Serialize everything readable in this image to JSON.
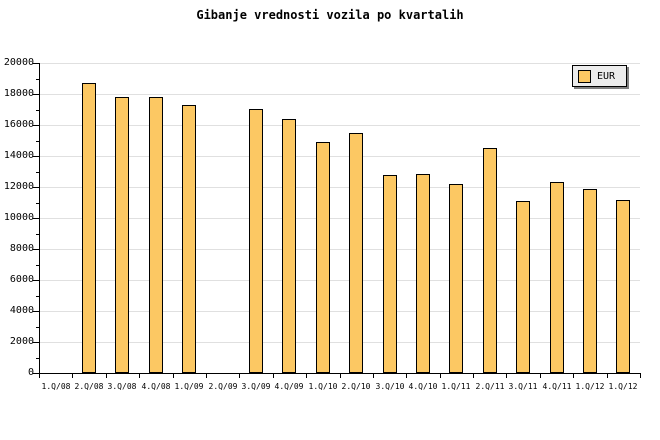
{
  "chart_data": {
    "type": "bar",
    "title": "Gibanje vrednosti vozila po kvartalih",
    "categories": [
      "1.Q/08",
      "2.Q/08",
      "3.Q/08",
      "4.Q/08",
      "1.Q/09",
      "2.Q/09",
      "3.Q/09",
      "4.Q/09",
      "1.Q/10",
      "2.Q/10",
      "3.Q/10",
      "4.Q/10",
      "1.Q/11",
      "2.Q/11",
      "3.Q/11",
      "4.Q/11",
      "1.Q/12",
      "1.Q/12"
    ],
    "series": [
      {
        "name": "EUR",
        "values": [
          null,
          18700,
          17800,
          17800,
          17300,
          null,
          17050,
          16400,
          14900,
          15500,
          12800,
          12850,
          12200,
          14500,
          11100,
          12300,
          11850,
          11150
        ]
      }
    ],
    "xlabel": "",
    "ylabel": "",
    "ylim": [
      0,
      20000
    ],
    "ytick_step": 2000,
    "minor_tick_step": 1000,
    "ytick_labels": [
      "0",
      "2000",
      "4000",
      "6000",
      "8000",
      "10000",
      "12000",
      "14000",
      "16000",
      "18000",
      "20000"
    ],
    "grid": true,
    "legend_position": "top-right",
    "colors": {
      "bar_fill": "#FCC863",
      "bar_border": "#000000",
      "gridline": "#E0E0E0",
      "legend_bg": "#ECECEC",
      "legend_shadow": "#808080",
      "axis": "#000000",
      "text": "#000000",
      "background": "#FFFFFF"
    }
  },
  "legend": {
    "label": "EUR"
  }
}
